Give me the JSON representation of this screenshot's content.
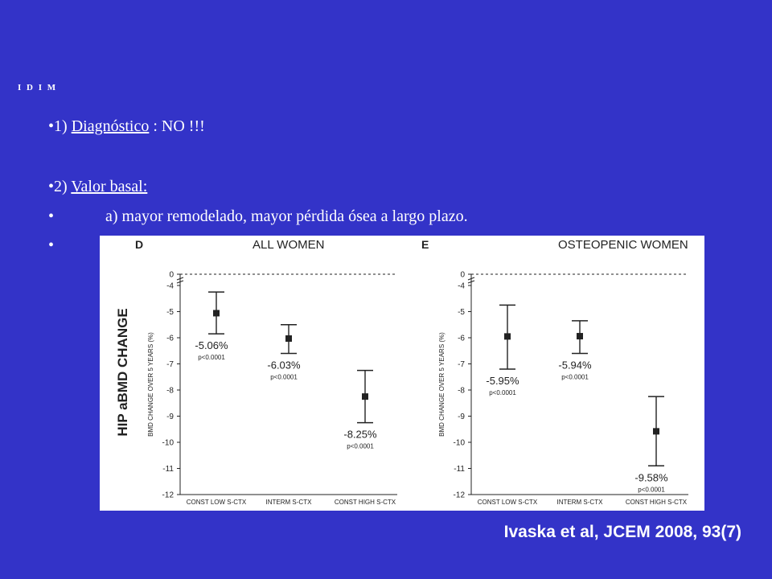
{
  "slide": {
    "tag": "I D I M",
    "bullets": [
      {
        "marker": "•",
        "prefix": "1) ",
        "underlined": "Diagnóstico",
        "suffix": " : NO !!!"
      },
      {
        "marker": "•",
        "prefix": "2) ",
        "underlined": "Valor basal:",
        "suffix": ""
      },
      {
        "marker": "•",
        "text": "a) mayor remodelado, mayor pérdida ósea a largo plazo."
      },
      {
        "marker": "•"
      }
    ],
    "citation": "Ivaska et al, JCEM 2008, 93(7)"
  },
  "figure": {
    "left_ylabel": "HIP aBMD CHANGE"
  },
  "chart_data": [
    {
      "type": "scatter",
      "panel_letter": "D",
      "title": "ALL WOMEN",
      "ylabel": "BMD CHANGE OVER 5 YEARS (%)",
      "ylim": [
        -12,
        0
      ],
      "yticks": [
        "0",
        "-4",
        "-5",
        "-6",
        "-7",
        "-8",
        "-9",
        "-10",
        "-11",
        "-12"
      ],
      "categories": [
        "CONST LOW S-CTX",
        "INTERM S-CTX",
        "CONST HIGH S-CTX"
      ],
      "values": [
        -5.06,
        -6.03,
        -8.25
      ],
      "error_low": [
        -5.85,
        -6.6,
        -9.25
      ],
      "error_high": [
        -4.25,
        -5.5,
        -7.25
      ],
      "value_labels": [
        "-5.06%",
        "-6.03%",
        "-8.25%"
      ],
      "p_labels": [
        "p<0.0001",
        "p<0.0001",
        "p<0.0001"
      ]
    },
    {
      "type": "scatter",
      "panel_letter": "E",
      "title": "OSTEOPENIC WOMEN",
      "ylabel": "BMD CHANGE OVER 5 YEARS (%)",
      "ylim": [
        -12,
        0
      ],
      "yticks": [
        "0",
        "-4",
        "-5",
        "-6",
        "-7",
        "-8",
        "-9",
        "-10",
        "-11",
        "-12"
      ],
      "categories": [
        "CONST LOW S-CTX",
        "INTERM S-CTX",
        "CONST HIGH S-CTX"
      ],
      "values": [
        -5.95,
        -5.94,
        -9.58
      ],
      "error_low": [
        -7.2,
        -6.6,
        -10.9
      ],
      "error_high": [
        -4.75,
        -5.35,
        -8.25
      ],
      "value_labels": [
        "-5.95%",
        "-5.94%",
        "-9.58%"
      ],
      "p_labels": [
        "p<0.0001",
        "p<0.0001",
        "p<0.0001"
      ]
    }
  ],
  "colors": {
    "background": "#3333c8",
    "text": "#ffffff",
    "figure_bg": "#ffffff",
    "ink": "#222222"
  }
}
